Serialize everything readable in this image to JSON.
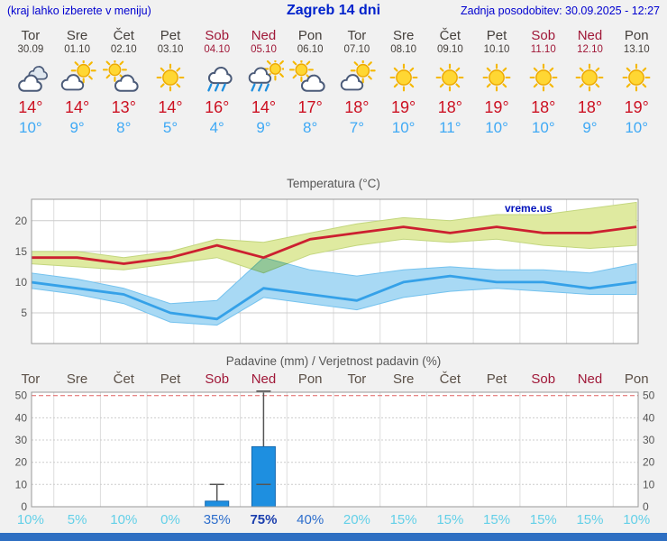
{
  "header": {
    "left": "(kraj lahko izberete v meniju)",
    "title": "Zagreb 14 dni",
    "updated": "Zadnja posodobitev: 30.09.2025 - 12:27"
  },
  "colors": {
    "tmax": "#cc1122",
    "tmin": "#3fa9f5",
    "weekend": "#a01838",
    "weekday": "#45403c",
    "footer": "#2e6fc2"
  },
  "days": [
    {
      "name": "Tor",
      "date": "30.09",
      "weekend": false,
      "icon": "cloudy",
      "tmax": "14°",
      "tmin": "10°"
    },
    {
      "name": "Sre",
      "date": "01.10",
      "weekend": false,
      "icon": "partly-sunny",
      "tmax": "14°",
      "tmin": "9°"
    },
    {
      "name": "Čet",
      "date": "02.10",
      "weekend": false,
      "icon": "mostly-cloudy",
      "tmax": "13°",
      "tmin": "8°"
    },
    {
      "name": "Pet",
      "date": "03.10",
      "weekend": false,
      "icon": "sunny",
      "tmax": "14°",
      "tmin": "5°"
    },
    {
      "name": "Sob",
      "date": "04.10",
      "weekend": true,
      "icon": "rain",
      "tmax": "16°",
      "tmin": "4°"
    },
    {
      "name": "Ned",
      "date": "05.10",
      "weekend": true,
      "icon": "rain-sun",
      "tmax": "14°",
      "tmin": "9°"
    },
    {
      "name": "Pon",
      "date": "06.10",
      "weekend": false,
      "icon": "mostly-cloudy",
      "tmax": "17°",
      "tmin": "8°"
    },
    {
      "name": "Tor",
      "date": "07.10",
      "weekend": false,
      "icon": "partly-sunny",
      "tmax": "18°",
      "tmin": "7°"
    },
    {
      "name": "Sre",
      "date": "08.10",
      "weekend": false,
      "icon": "sunny",
      "tmax": "19°",
      "tmin": "10°"
    },
    {
      "name": "Čet",
      "date": "09.10",
      "weekend": false,
      "icon": "sunny",
      "tmax": "18°",
      "tmin": "11°"
    },
    {
      "name": "Pet",
      "date": "10.10",
      "weekend": false,
      "icon": "sunny",
      "tmax": "19°",
      "tmin": "10°"
    },
    {
      "name": "Sob",
      "date": "11.10",
      "weekend": true,
      "icon": "sunny",
      "tmax": "18°",
      "tmin": "10°"
    },
    {
      "name": "Ned",
      "date": "12.10",
      "weekend": true,
      "icon": "sunny",
      "tmax": "18°",
      "tmin": "9°"
    },
    {
      "name": "Pon",
      "date": "13.10",
      "weekend": false,
      "icon": "sunny",
      "tmax": "19°",
      "tmin": "10°"
    }
  ],
  "chart_data": [
    {
      "type": "line",
      "title": "Temperatura (°C)",
      "watermark": "vreme.us",
      "watermark_color": "#0011bb",
      "ylim": [
        0,
        23.5
      ],
      "yticks": [
        5,
        10,
        15,
        20
      ],
      "categories": [
        "Tor",
        "Sre",
        "Čet",
        "Pet",
        "Sob",
        "Ned",
        "Pon",
        "Tor",
        "Sre",
        "Čet",
        "Pet",
        "Sob",
        "Ned",
        "Pon"
      ],
      "series": [
        {
          "name": "max-temperature",
          "color": "#cc2030",
          "band_color": "#dfeaa0",
          "band_edge": "#c3d67e",
          "values": [
            14,
            14,
            13,
            14,
            16,
            14,
            17,
            18,
            19,
            18,
            19,
            18,
            18,
            19
          ],
          "band_hi": [
            15,
            15,
            14,
            15,
            17,
            16.5,
            18,
            19.5,
            20.5,
            20,
            21,
            21,
            22,
            23
          ],
          "band_lo": [
            13,
            12.5,
            12,
            13,
            14,
            11.5,
            14.5,
            16,
            17,
            16.5,
            17,
            16,
            15.5,
            16
          ]
        },
        {
          "name": "min-temperature",
          "color": "#35a1e8",
          "band_color": "#a8d9f4",
          "band_edge": "#74c2ee",
          "values": [
            10,
            9,
            8,
            5,
            4,
            9,
            8,
            7,
            10,
            11,
            10,
            10,
            9,
            10
          ],
          "band_hi": [
            11.5,
            10.5,
            9,
            6.5,
            7,
            14,
            12,
            11,
            12,
            12.5,
            12,
            12,
            11.5,
            13
          ],
          "band_lo": [
            9,
            8,
            6.5,
            3.5,
            3,
            7.5,
            6.5,
            5.5,
            7.5,
            8.5,
            9,
            8.5,
            8,
            8
          ]
        }
      ]
    },
    {
      "type": "bar",
      "title": "Padavine (mm) / Verjetnost padavin (%)",
      "ylim": [
        0,
        51.5
      ],
      "yticks": [
        0,
        10,
        20,
        30,
        40,
        50
      ],
      "categories": [
        "Tor",
        "Sre",
        "Čet",
        "Pet",
        "Sob",
        "Ned",
        "Pon",
        "Tor",
        "Sre",
        "Čet",
        "Pet",
        "Sob",
        "Ned",
        "Pon"
      ],
      "values": [
        0,
        0,
        0,
        0,
        2.5,
        27,
        0,
        0,
        0,
        0,
        0,
        0,
        0,
        0
      ],
      "whisker_lo": [
        0,
        0,
        0,
        0,
        0,
        10,
        0,
        0,
        0,
        0,
        0,
        0,
        0,
        0
      ],
      "whisker_hi": [
        0,
        0,
        0,
        0,
        10,
        52,
        0,
        0,
        0,
        0,
        0,
        0,
        0,
        0
      ],
      "bar_color": "#1e8fe0",
      "bar_edge": "#1468b0",
      "probabilities": [
        {
          "label": "10%",
          "level": "low"
        },
        {
          "label": "5%",
          "level": "low"
        },
        {
          "label": "10%",
          "level": "low"
        },
        {
          "label": "0%",
          "level": "low"
        },
        {
          "label": "35%",
          "level": "mid"
        },
        {
          "label": "75%",
          "level": "high"
        },
        {
          "label": "40%",
          "level": "mid"
        },
        {
          "label": "20%",
          "level": "low"
        },
        {
          "label": "15%",
          "level": "low"
        },
        {
          "label": "15%",
          "level": "low"
        },
        {
          "label": "15%",
          "level": "low"
        },
        {
          "label": "15%",
          "level": "low"
        },
        {
          "label": "15%",
          "level": "low"
        },
        {
          "label": "10%",
          "level": "low"
        }
      ],
      "prob_colors": {
        "low": "#63d0e8",
        "mid": "#2d6ecc",
        "high": "#1b3fae"
      }
    }
  ]
}
